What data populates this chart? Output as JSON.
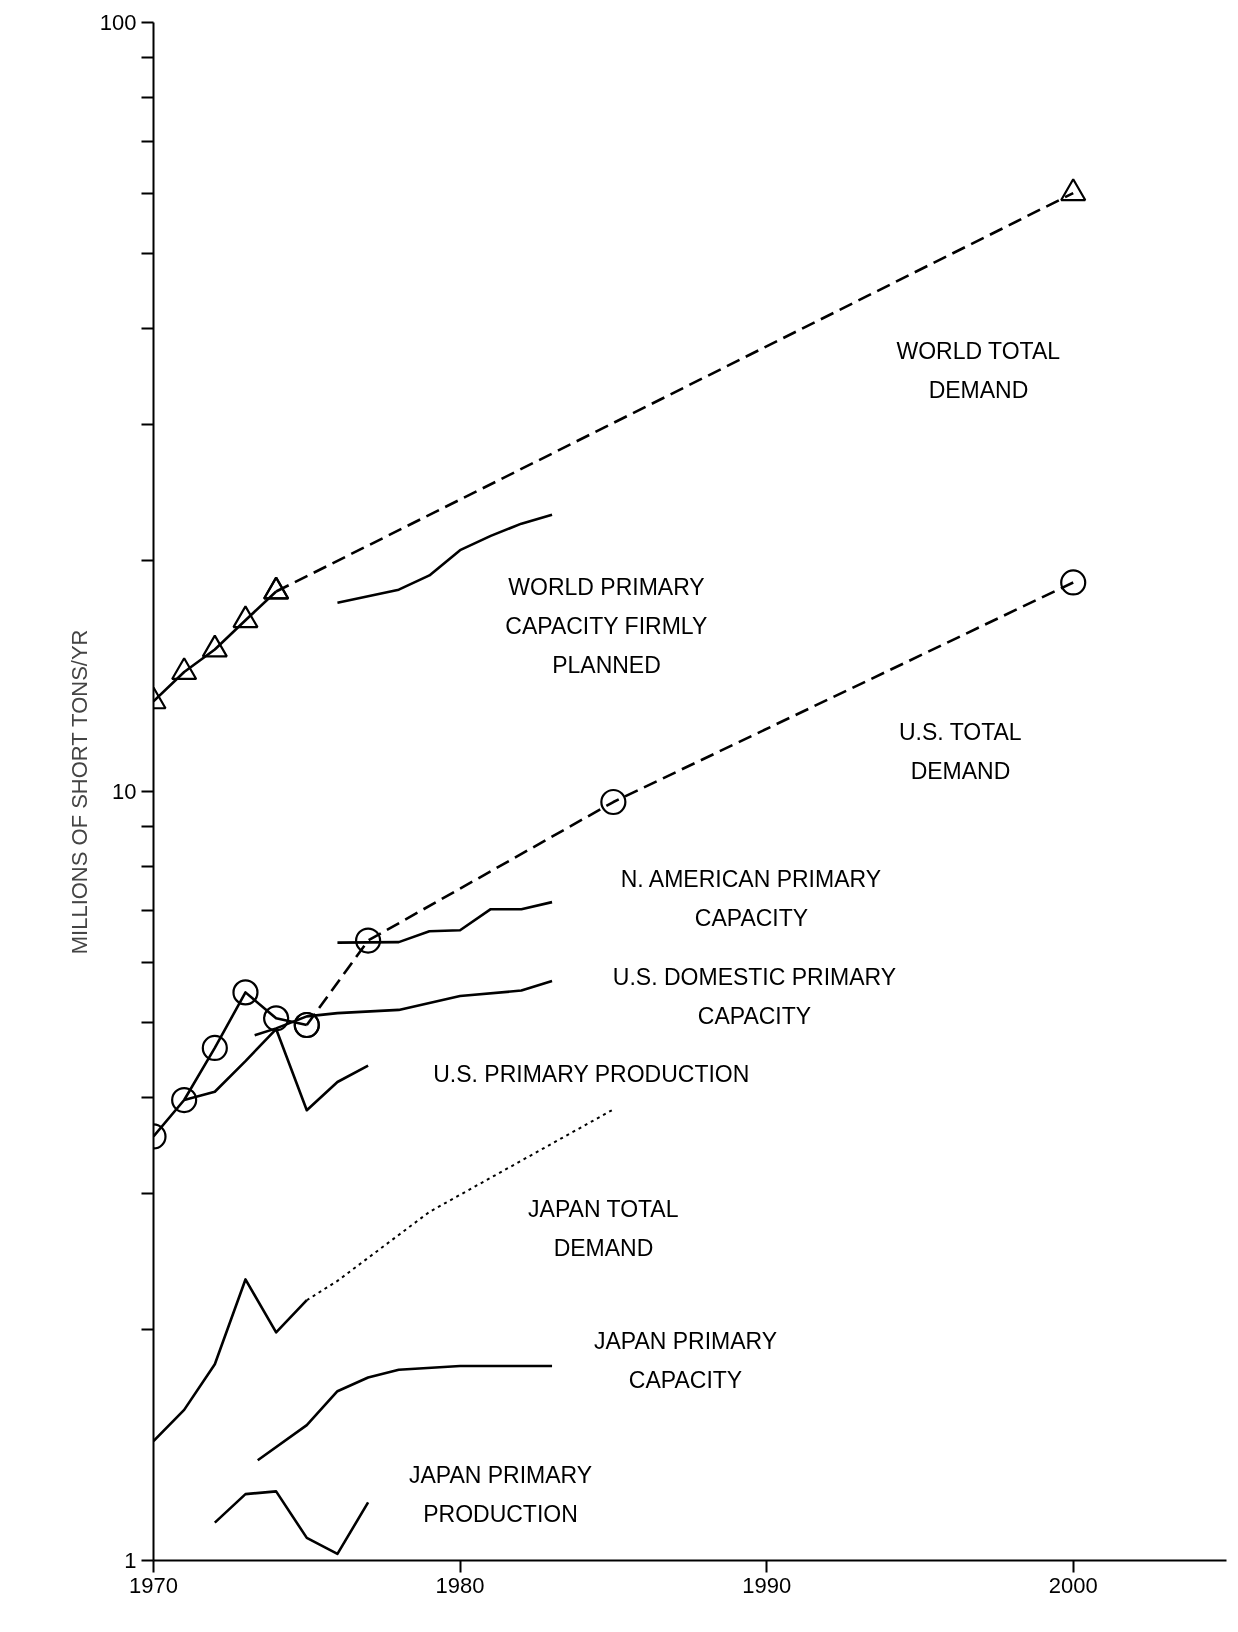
{
  "chart_data": {
    "type": "line",
    "ylabel": "MILLIONS OF SHORT TONS/YR",
    "log": "y",
    "grid": false,
    "xlim": [
      1970,
      2005
    ],
    "xticks": [
      1970,
      1980,
      1990,
      2000
    ],
    "ylim": [
      1,
      100
    ],
    "yticks": [
      1,
      {
        "value": 2,
        "label": null
      },
      {
        "value": 3,
        "label": null
      },
      {
        "value": 4,
        "label": null
      },
      {
        "value": 5,
        "label": null
      },
      {
        "value": 6,
        "label": null
      },
      {
        "value": 7,
        "label": null
      },
      {
        "value": 8,
        "label": null
      },
      {
        "value": 9,
        "label": null
      },
      10,
      {
        "value": 20,
        "label": null
      },
      {
        "value": 30,
        "label": null
      },
      {
        "value": 40,
        "label": null
      },
      {
        "value": 50,
        "label": null
      },
      {
        "value": 60,
        "label": null
      },
      {
        "value": 70,
        "label": null
      },
      {
        "value": 80,
        "label": null
      },
      {
        "value": 90,
        "label": null
      },
      100
    ],
    "series": [
      {
        "color": "#000000",
        "marker": "triangle",
        "line_style": "solid",
        "x": [
          1970,
          1971,
          1972,
          1973,
          1974
        ],
        "values": [
          13.1,
          14.3,
          15.3,
          16.7,
          18.2
        ]
      },
      {
        "color": "#000000",
        "marker": "triangle",
        "line_style": "dashed",
        "x": [
          1974,
          2000
        ],
        "values": [
          18.2,
          60
        ]
      },
      {
        "color": "#000000",
        "marker": "circle",
        "line_style": "solid",
        "x": [
          1970,
          1971,
          1972,
          1973,
          1974,
          1975
        ],
        "values": [
          3.56,
          3.97,
          4.64,
          5.48,
          5.07,
          4.97
        ]
      },
      {
        "color": "#000000",
        "marker": "circle",
        "line_style": "dashed",
        "x": [
          1975,
          1977,
          1985,
          2000
        ],
        "values": [
          4.97,
          6.4,
          9.69,
          18.7
        ]
      },
      {
        "color": "#000000",
        "marker": "none",
        "line_style": "solid",
        "x": [
          1976,
          1978,
          1979,
          1980,
          1981,
          1982,
          1983
        ],
        "values": [
          17.6,
          18.3,
          19.1,
          20.6,
          21.5,
          22.3,
          22.9
        ]
      },
      {
        "color": "#000000",
        "marker": "none",
        "line_style": "solid",
        "x": [
          1976,
          1978,
          1979,
          1980,
          1981,
          1982,
          1983
        ],
        "values": [
          6.36,
          6.37,
          6.58,
          6.6,
          7.03,
          7.03,
          7.18
        ]
      },
      {
        "color": "#000000",
        "marker": "none",
        "line_style": "solid",
        "x": [
          1973.3,
          1974,
          1975,
          1976,
          1978,
          1980,
          1982,
          1983
        ],
        "values": [
          4.82,
          4.92,
          5.1,
          5.15,
          5.2,
          5.42,
          5.51,
          5.67
        ]
      },
      {
        "color": "#000000",
        "marker": "none",
        "line_style": "solid",
        "x": [
          1971,
          1972,
          1973,
          1974,
          1975,
          1976,
          1977
        ],
        "values": [
          3.97,
          4.07,
          4.46,
          4.91,
          3.85,
          4.19,
          4.4
        ]
      },
      {
        "color": "#000000",
        "marker": "none",
        "line_style": "solid",
        "x": [
          1970,
          1971,
          1972,
          1973,
          1974,
          1975
        ],
        "values": [
          1.43,
          1.57,
          1.8,
          2.32,
          1.98,
          2.18
        ]
      },
      {
        "color": "#000000",
        "marker": "none",
        "line_style": "dotted",
        "x": [
          1975,
          1976,
          1979,
          1985
        ],
        "values": [
          2.18,
          2.31,
          2.84,
          3.86
        ]
      },
      {
        "color": "#000000",
        "marker": "none",
        "line_style": "solid",
        "x": [
          1973.4,
          1975,
          1976,
          1977,
          1978,
          1980,
          1983
        ],
        "values": [
          1.35,
          1.5,
          1.66,
          1.73,
          1.77,
          1.79,
          1.79
        ]
      },
      {
        "color": "#000000",
        "marker": "none",
        "line_style": "solid",
        "x": [
          1972,
          1973,
          1974,
          1975,
          1976,
          1977
        ],
        "values": [
          1.12,
          1.22,
          1.23,
          1.07,
          1.02,
          1.19
        ]
      }
    ],
    "annotations": [
      "WORLD TOTAL\nDEMAND",
      "WORLD PRIMARY\nCAPACITY FIRMLY\nPLANNED",
      "U.S. TOTAL\nDEMAND",
      "N. AMERICAN PRIMARY\nCAPACITY",
      "U.S. DOMESTIC PRIMARY\nCAPACITY",
      "U.S. PRIMARY PRODUCTION",
      "JAPAN TOTAL\nDEMAND",
      "JAPAN PRIMARY\nCAPACITY",
      "JAPAN PRIMARY\nPRODUCTION"
    ]
  }
}
